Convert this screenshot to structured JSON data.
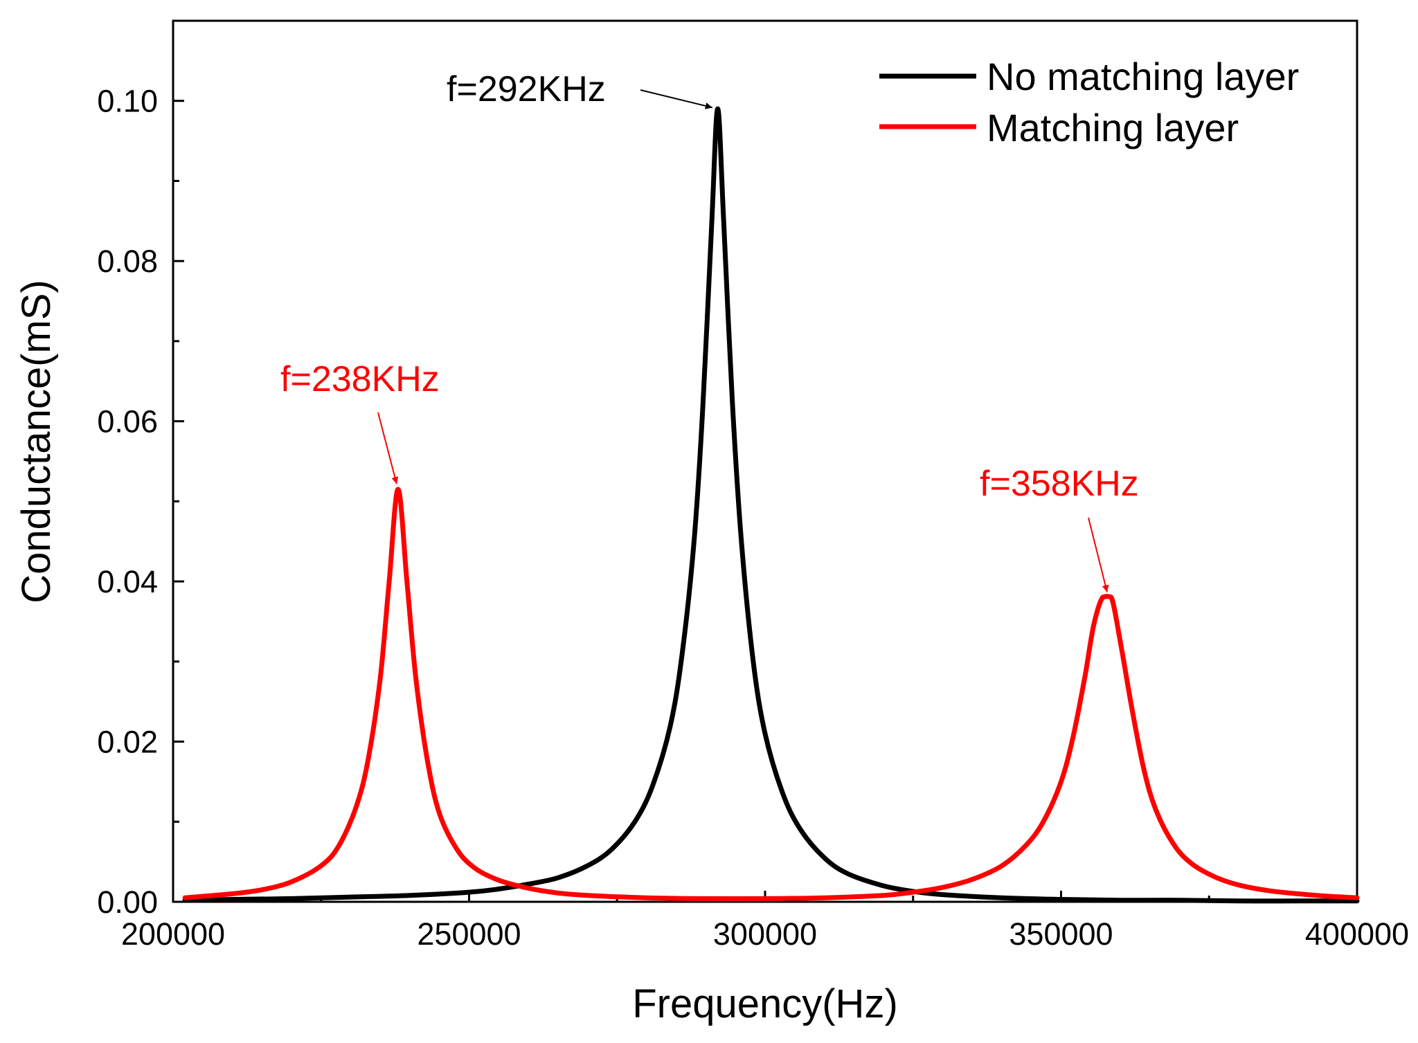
{
  "chart_data": {
    "type": "line",
    "title": "",
    "xlabel": "Frequency(Hz)",
    "ylabel": "Conductance(mS)",
    "xlim": [
      200000,
      400000
    ],
    "ylim": [
      0,
      0.11
    ],
    "x_ticks": [
      200000,
      250000,
      300000,
      350000,
      400000
    ],
    "x_tick_labels": [
      "200000",
      "250000",
      "300000",
      "350000",
      "400000"
    ],
    "x_minor_step": 25000,
    "y_ticks": [
      0,
      0.02,
      0.04,
      0.06,
      0.08,
      0.1
    ],
    "y_tick_labels": [
      "0.00",
      "0.02",
      "0.04",
      "0.06",
      "0.08",
      "0.10"
    ],
    "y_minor_step": 0.01,
    "grid": false,
    "legend_position": "top-right",
    "series": [
      {
        "name": "No matching layer",
        "color": "#000000",
        "x": [
          202000,
          210000,
          220000,
          230000,
          240000,
          250000,
          255000,
          260000,
          265000,
          270000,
          274000,
          278000,
          281000,
          284000,
          286000,
          288000,
          289500,
          291000,
          292000,
          293000,
          294500,
          296000,
          298000,
          300000,
          303000,
          306000,
          310000,
          314000,
          320000,
          325000,
          330000,
          340000,
          350000,
          360000,
          370000,
          380000,
          390000,
          400000
        ],
        "y": [
          0.0002,
          0.0003,
          0.0004,
          0.0006,
          0.0008,
          0.0012,
          0.0016,
          0.0022,
          0.003,
          0.0045,
          0.0065,
          0.01,
          0.0145,
          0.022,
          0.031,
          0.045,
          0.062,
          0.085,
          0.099,
          0.085,
          0.062,
          0.045,
          0.03,
          0.021,
          0.0135,
          0.009,
          0.0055,
          0.0035,
          0.002,
          0.0013,
          0.0009,
          0.0005,
          0.0003,
          0.0002,
          0.0002,
          0.0001,
          0.0001,
          0.0001
        ]
      },
      {
        "name": "Matching layer",
        "color": "#ff0000",
        "x": [
          202000,
          210000,
          215000,
          220000,
          225000,
          228000,
          231000,
          233000,
          235000,
          236500,
          238000,
          239500,
          241000,
          243000,
          245000,
          248000,
          251000,
          255000,
          260000,
          265000,
          270000,
          280000,
          290000,
          300000,
          310000,
          320000,
          325000,
          330000,
          335000,
          340000,
          344000,
          347000,
          350000,
          352000,
          354000,
          355500,
          357000,
          358500,
          360000,
          362000,
          364000,
          366000,
          369000,
          372000,
          376000,
          380000,
          385000,
          390000,
          395000,
          400000
        ],
        "y": [
          0.0005,
          0.001,
          0.0015,
          0.0025,
          0.0045,
          0.007,
          0.012,
          0.018,
          0.028,
          0.04,
          0.0515,
          0.04,
          0.028,
          0.0175,
          0.011,
          0.0065,
          0.0042,
          0.0027,
          0.0017,
          0.0011,
          0.0008,
          0.0005,
          0.0004,
          0.0004,
          0.0005,
          0.0008,
          0.0012,
          0.0018,
          0.0028,
          0.0045,
          0.007,
          0.01,
          0.015,
          0.0205,
          0.028,
          0.0345,
          0.038,
          0.038,
          0.0325,
          0.024,
          0.0165,
          0.0115,
          0.0072,
          0.0048,
          0.0031,
          0.0021,
          0.0014,
          0.001,
          0.0007,
          0.0005
        ]
      }
    ],
    "annotations": [
      {
        "text": "f=292KHz",
        "color": "#000000",
        "target_x": 292000,
        "target_y": 0.099
      },
      {
        "text": "f=238KHz",
        "color": "#ff0000",
        "target_x": 238000,
        "target_y": 0.0515
      },
      {
        "text": "f=358KHz",
        "color": "#ff0000",
        "target_x": 358000,
        "target_y": 0.038
      }
    ]
  }
}
